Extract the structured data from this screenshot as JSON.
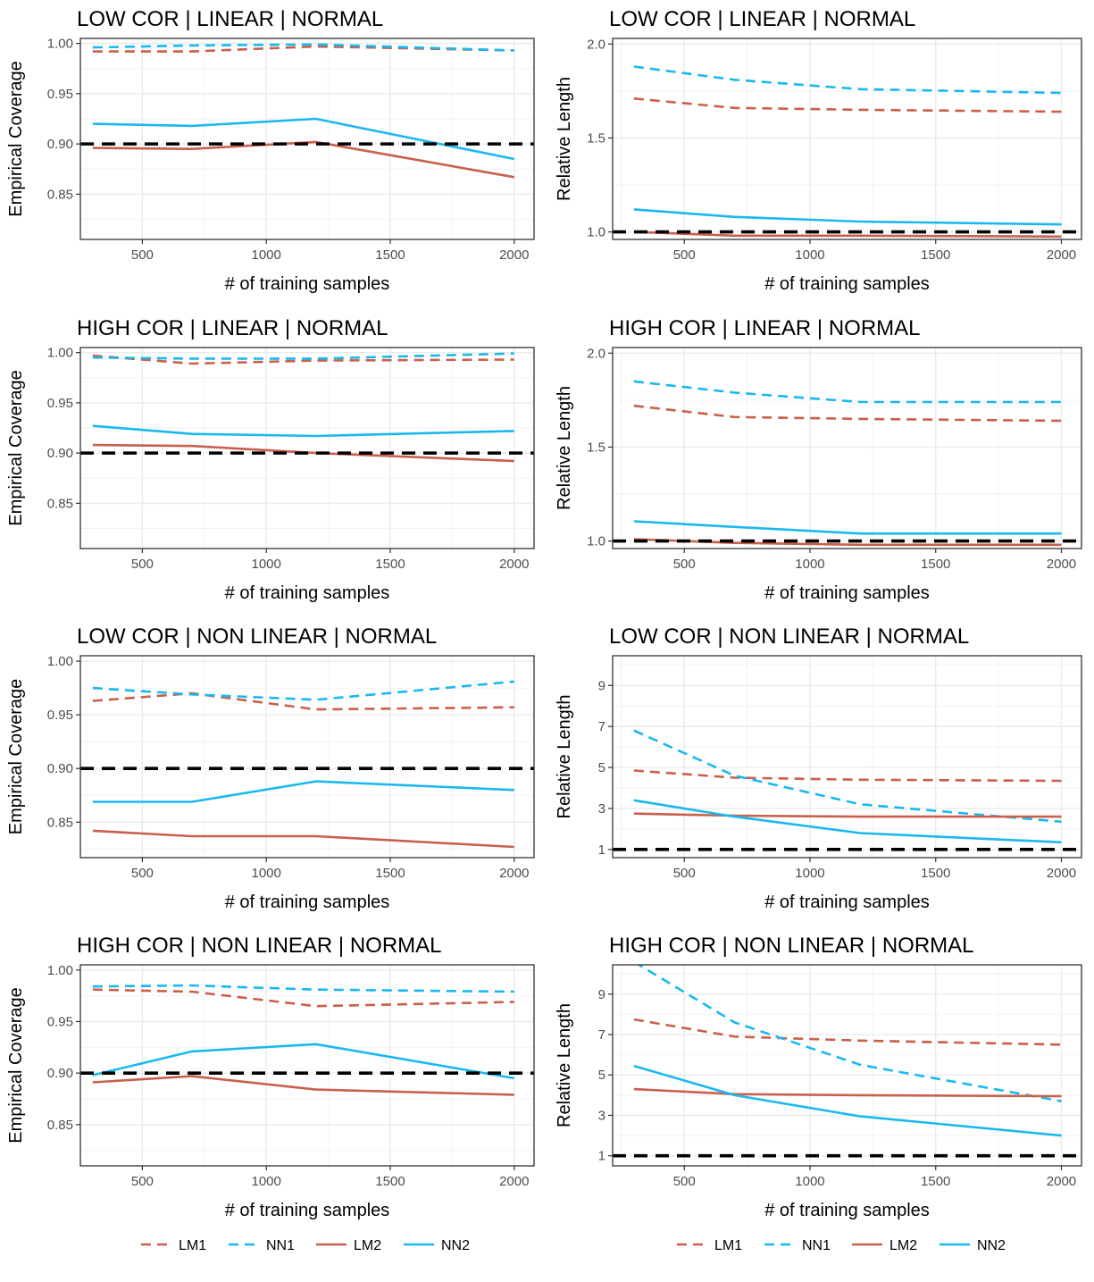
{
  "colors": {
    "lm": "#c8604c",
    "nn": "#1ab8ef",
    "reference": "#000000"
  },
  "legends": [
    {
      "items": [
        {
          "label": "LM1",
          "color": "#c8604c",
          "linetype": "dashed"
        },
        {
          "label": "NN1",
          "color": "#1ab8ef",
          "linetype": "dashed"
        },
        {
          "label": "LM2",
          "color": "#c8604c",
          "linetype": "solid"
        },
        {
          "label": "NN2",
          "color": "#1ab8ef",
          "linetype": "solid"
        }
      ]
    },
    {
      "items": [
        {
          "label": "LM1",
          "color": "#c8604c",
          "linetype": "dashed"
        },
        {
          "label": "NN1",
          "color": "#1ab8ef",
          "linetype": "dashed"
        },
        {
          "label": "LM2",
          "color": "#c8604c",
          "linetype": "solid"
        },
        {
          "label": "NN2",
          "color": "#1ab8ef",
          "linetype": "solid"
        }
      ]
    }
  ],
  "chart_data": [
    {
      "type": "line",
      "title": "LOW COR | LINEAR | NORMAL",
      "xlabel": "# of training samples",
      "ylabel": "Empirical Coverage",
      "x": [
        300,
        700,
        1200,
        2000
      ],
      "xlim": [
        250,
        2080
      ],
      "ylim": [
        0.805,
        1.005
      ],
      "xticks": [
        500,
        1000,
        1500,
        2000
      ],
      "yticks": [
        0.85,
        0.9,
        0.95,
        1.0
      ],
      "ytick_labels": [
        "0.85",
        "0.90",
        "0.95",
        "1.00"
      ],
      "reference": 0.9,
      "grid": true,
      "series": [
        {
          "name": "LM1",
          "linetype": "dashed",
          "values": [
            0.992,
            0.992,
            0.997,
            0.993
          ]
        },
        {
          "name": "NN1",
          "linetype": "dashed",
          "values": [
            0.996,
            0.998,
            0.999,
            0.993
          ]
        },
        {
          "name": "LM2",
          "linetype": "solid",
          "values": [
            0.896,
            0.895,
            0.902,
            0.867
          ]
        },
        {
          "name": "NN2",
          "linetype": "solid",
          "values": [
            0.92,
            0.918,
            0.925,
            0.885
          ]
        }
      ]
    },
    {
      "type": "line",
      "title": "LOW COR | LINEAR | NORMAL",
      "xlabel": "# of training samples",
      "ylabel": "Relative Length",
      "x": [
        300,
        700,
        1200,
        2000
      ],
      "xlim": [
        215,
        2080
      ],
      "ylim": [
        0.96,
        2.03
      ],
      "xticks": [
        500,
        1000,
        1500,
        2000
      ],
      "yticks": [
        1.0,
        1.5,
        2.0
      ],
      "ytick_labels": [
        "1.0",
        "1.5",
        "2.0"
      ],
      "reference": 1.0,
      "grid": true,
      "series": [
        {
          "name": "LM1",
          "linetype": "dashed",
          "values": [
            1.71,
            1.66,
            1.65,
            1.64
          ]
        },
        {
          "name": "NN1",
          "linetype": "dashed",
          "values": [
            1.88,
            1.81,
            1.76,
            1.74
          ]
        },
        {
          "name": "LM2",
          "linetype": "solid",
          "values": [
            1.0,
            0.98,
            0.98,
            0.975
          ]
        },
        {
          "name": "NN2",
          "linetype": "solid",
          "values": [
            1.12,
            1.08,
            1.055,
            1.04
          ]
        }
      ]
    },
    {
      "type": "line",
      "title": "HIGH COR | LINEAR | NORMAL",
      "xlabel": "# of training samples",
      "ylabel": "Empirical Coverage",
      "x": [
        300,
        700,
        1200,
        2000
      ],
      "xlim": [
        250,
        2080
      ],
      "ylim": [
        0.805,
        1.005
      ],
      "xticks": [
        500,
        1000,
        1500,
        2000
      ],
      "yticks": [
        0.85,
        0.9,
        0.95,
        1.0
      ],
      "ytick_labels": [
        "0.85",
        "0.90",
        "0.95",
        "1.00"
      ],
      "reference": 0.9,
      "grid": true,
      "series": [
        {
          "name": "LM1",
          "linetype": "dashed",
          "values": [
            0.997,
            0.989,
            0.992,
            0.993
          ]
        },
        {
          "name": "NN1",
          "linetype": "dashed",
          "values": [
            0.995,
            0.994,
            0.994,
            0.999
          ]
        },
        {
          "name": "LM2",
          "linetype": "solid",
          "values": [
            0.908,
            0.907,
            0.9,
            0.892
          ]
        },
        {
          "name": "NN2",
          "linetype": "solid",
          "values": [
            0.927,
            0.919,
            0.917,
            0.922
          ]
        }
      ]
    },
    {
      "type": "line",
      "title": "HIGH COR | LINEAR | NORMAL",
      "xlabel": "# of training samples",
      "ylabel": "Relative Length",
      "x": [
        300,
        700,
        1200,
        2000
      ],
      "xlim": [
        215,
        2080
      ],
      "ylim": [
        0.96,
        2.03
      ],
      "xticks": [
        500,
        1000,
        1500,
        2000
      ],
      "yticks": [
        1.0,
        1.5,
        2.0
      ],
      "ytick_labels": [
        "1.0",
        "1.5",
        "2.0"
      ],
      "reference": 1.0,
      "grid": true,
      "series": [
        {
          "name": "LM1",
          "linetype": "dashed",
          "values": [
            1.72,
            1.66,
            1.65,
            1.64
          ]
        },
        {
          "name": "NN1",
          "linetype": "dashed",
          "values": [
            1.85,
            1.79,
            1.74,
            1.74
          ]
        },
        {
          "name": "LM2",
          "linetype": "solid",
          "values": [
            1.01,
            0.99,
            0.98,
            0.98
          ]
        },
        {
          "name": "NN2",
          "linetype": "solid",
          "values": [
            1.105,
            1.075,
            1.04,
            1.04
          ]
        }
      ]
    },
    {
      "type": "line",
      "title": "LOW COR | NON LINEAR | NORMAL",
      "xlabel": "# of training samples",
      "ylabel": "Empirical Coverage",
      "x": [
        300,
        700,
        1200,
        2000
      ],
      "xlim": [
        250,
        2080
      ],
      "ylim": [
        0.817,
        1.005
      ],
      "xticks": [
        500,
        1000,
        1500,
        2000
      ],
      "yticks": [
        0.85,
        0.9,
        0.95,
        1.0
      ],
      "ytick_labels": [
        "0.85",
        "0.90",
        "0.95",
        "1.00"
      ],
      "reference": 0.9,
      "grid": true,
      "series": [
        {
          "name": "LM1",
          "linetype": "dashed",
          "values": [
            0.963,
            0.97,
            0.955,
            0.957
          ]
        },
        {
          "name": "NN1",
          "linetype": "dashed",
          "values": [
            0.975,
            0.969,
            0.964,
            0.981
          ]
        },
        {
          "name": "LM2",
          "linetype": "solid",
          "values": [
            0.842,
            0.837,
            0.837,
            0.827
          ]
        },
        {
          "name": "NN2",
          "linetype": "solid",
          "values": [
            0.869,
            0.869,
            0.888,
            0.88
          ]
        }
      ]
    },
    {
      "type": "line",
      "title": "LOW COR | NON LINEAR | NORMAL",
      "xlabel": "# of training samples",
      "ylabel": "Relative Length",
      "x": [
        300,
        700,
        1200,
        2000
      ],
      "xlim": [
        215,
        2080
      ],
      "ylim": [
        0.6,
        10.45
      ],
      "xticks": [
        500,
        1000,
        1500,
        2000
      ],
      "yticks": [
        1,
        3,
        5,
        7,
        9
      ],
      "ytick_labels": [
        "1",
        "3",
        "5",
        "7",
        "9"
      ],
      "reference": 1,
      "grid": true,
      "series": [
        {
          "name": "LM1",
          "linetype": "dashed",
          "values": [
            4.85,
            4.5,
            4.4,
            4.35
          ]
        },
        {
          "name": "NN1",
          "linetype": "dashed",
          "values": [
            6.8,
            4.6,
            3.2,
            2.35
          ]
        },
        {
          "name": "LM2",
          "linetype": "solid",
          "values": [
            2.75,
            2.65,
            2.6,
            2.6
          ]
        },
        {
          "name": "NN2",
          "linetype": "solid",
          "values": [
            3.4,
            2.6,
            1.8,
            1.35
          ]
        }
      ]
    },
    {
      "type": "line",
      "title": "HIGH COR | NON LINEAR | NORMAL",
      "xlabel": "# of training samples",
      "ylabel": "Empirical Coverage",
      "x": [
        300,
        700,
        1200,
        2000
      ],
      "xlim": [
        250,
        2080
      ],
      "ylim": [
        0.81,
        1.005
      ],
      "xticks": [
        500,
        1000,
        1500,
        2000
      ],
      "yticks": [
        0.85,
        0.9,
        0.95,
        1.0
      ],
      "ytick_labels": [
        "0.85",
        "0.90",
        "0.95",
        "1.00"
      ],
      "reference": 0.9,
      "grid": true,
      "series": [
        {
          "name": "LM1",
          "linetype": "dashed",
          "values": [
            0.981,
            0.979,
            0.965,
            0.969
          ]
        },
        {
          "name": "NN1",
          "linetype": "dashed",
          "values": [
            0.984,
            0.985,
            0.981,
            0.979
          ]
        },
        {
          "name": "LM2",
          "linetype": "solid",
          "values": [
            0.891,
            0.897,
            0.884,
            0.879
          ]
        },
        {
          "name": "NN2",
          "linetype": "solid",
          "values": [
            0.898,
            0.921,
            0.928,
            0.895
          ]
        }
      ]
    },
    {
      "type": "line",
      "title": "HIGH COR | NON LINEAR | NORMAL",
      "xlabel": "# of training samples",
      "ylabel": "Relative Length",
      "x": [
        300,
        700,
        1200,
        2000
      ],
      "xlim": [
        215,
        2080
      ],
      "ylim": [
        0.5,
        10.45
      ],
      "xticks": [
        500,
        1000,
        1500,
        2000
      ],
      "yticks": [
        1,
        3,
        5,
        7,
        9
      ],
      "ytick_labels": [
        "1",
        "3",
        "5",
        "7",
        "9"
      ],
      "reference": 1,
      "grid": true,
      "series": [
        {
          "name": "LM1",
          "linetype": "dashed",
          "values": [
            7.75,
            6.9,
            6.7,
            6.5
          ]
        },
        {
          "name": "NN1",
          "linetype": "dashed",
          "values": [
            10.6,
            7.6,
            5.5,
            3.7
          ]
        },
        {
          "name": "LM2",
          "linetype": "solid",
          "values": [
            4.3,
            4.05,
            4.0,
            3.95
          ]
        },
        {
          "name": "NN2",
          "linetype": "solid",
          "values": [
            5.45,
            4.0,
            2.95,
            2.0
          ]
        }
      ]
    }
  ]
}
